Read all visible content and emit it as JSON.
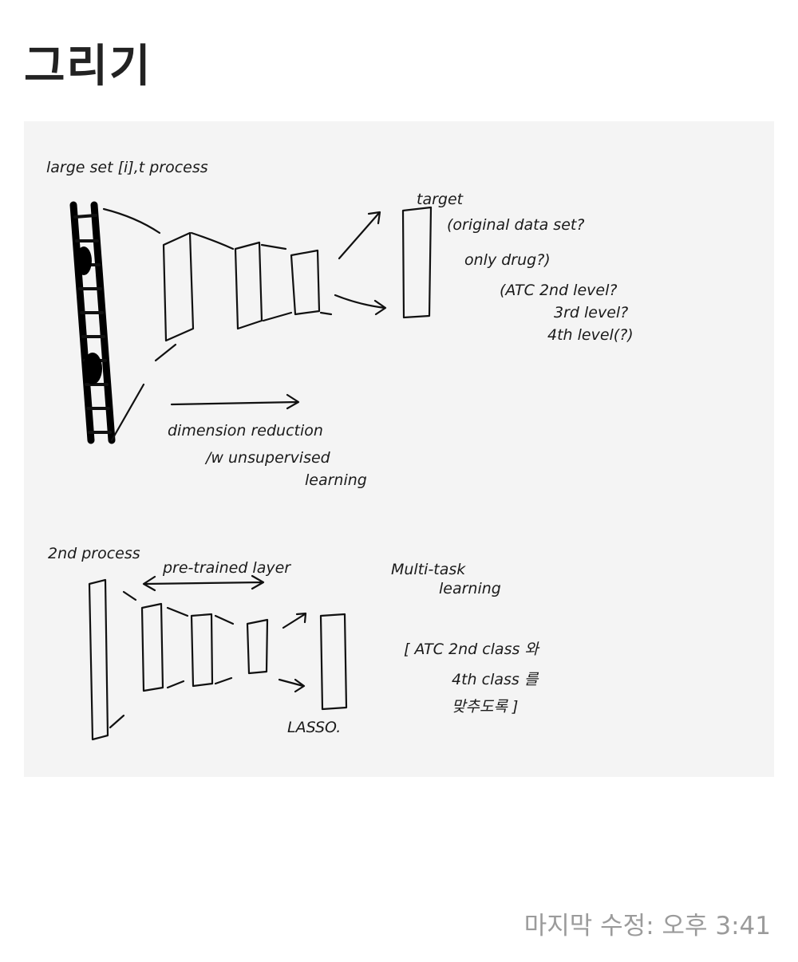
{
  "page": {
    "title": "그리기"
  },
  "drawing": {
    "text": {
      "first_process": "large set [i],t process",
      "target": "target",
      "target_note_1": "(original data set?",
      "target_note_2": "only drug?)",
      "target_note_3": "(ATC 2nd level?",
      "target_note_4": "3rd level?",
      "target_note_5": "4th level(?)",
      "dim_reduction_1": "dimension reduction",
      "dim_reduction_2": "/w unsupervised",
      "dim_reduction_3": "learning",
      "second_process": "2nd process",
      "pretrained": "pre-trained layer",
      "multitask_1": "Multi-task",
      "multitask_2": "learning",
      "multitask_3": "[ ATC 2nd class 와",
      "multitask_4": "4th class 를",
      "multitask_5": "맞추도록 ]",
      "lasso": "LASSO."
    }
  },
  "footer": {
    "last_modified": "마지막 수정: 오후 3:41"
  }
}
